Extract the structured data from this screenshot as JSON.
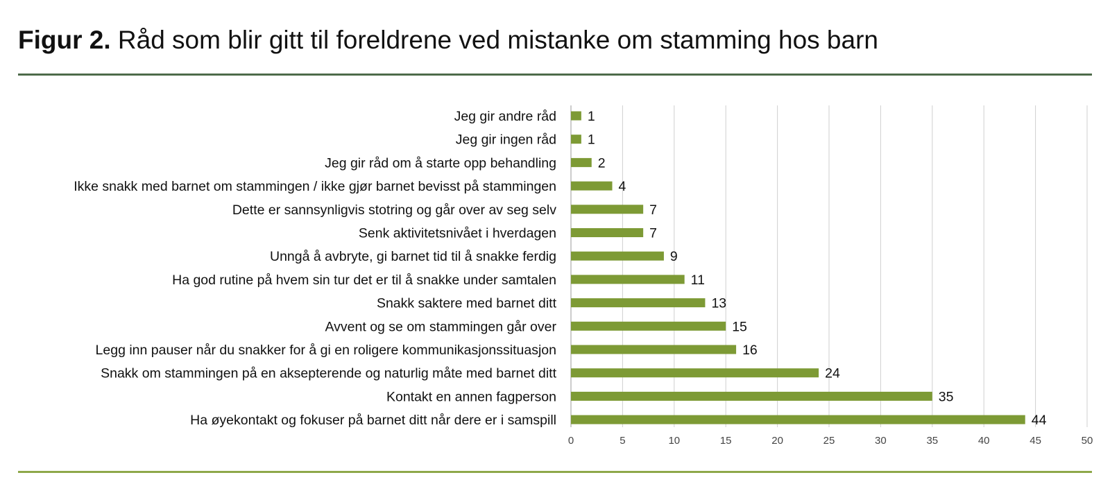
{
  "title": {
    "prefix": "Figur 2.",
    "text": "Råd som blir gitt til foreldrene ved mistanke om stamming hos barn"
  },
  "colors": {
    "bar": "#7d9a35",
    "top_rule": "#4e6b4a",
    "bottom_rule": "#8ea84a",
    "grid": "#cfcfcf"
  },
  "chart_data": {
    "type": "bar",
    "orientation": "horizontal",
    "categories": [
      "Jeg gir andre råd",
      "Jeg gir ingen råd",
      "Jeg gir råd om å starte opp behandling",
      "Ikke snakk med barnet om stammingen / ikke gjør barnet bevisst på stammingen",
      "Dette er sannsynligvis stotring og går over av seg selv",
      "Senk aktivitetsnivået i hverdagen",
      "Unngå å avbryte, gi barnet tid til å snakke ferdig",
      "Ha god rutine på hvem sin tur det er til å snakke under samtalen",
      "Snakk saktere med barnet ditt",
      "Avvent og se om stammingen går over",
      "Legg inn pauser når du snakker for å gi en roligere kommunikasjonssituasjon",
      "Snakk om stammingen på en aksepterende og naturlig måte med barnet ditt",
      "Kontakt en annen fagperson",
      "Ha øyekontakt og fokuser på barnet ditt når dere er i samspill"
    ],
    "values": [
      1,
      1,
      2,
      4,
      7,
      7,
      9,
      11,
      13,
      15,
      16,
      24,
      35,
      44
    ],
    "xlim": [
      0,
      50
    ],
    "xticks": [
      0,
      5,
      10,
      15,
      20,
      25,
      30,
      35,
      40,
      45,
      50
    ],
    "grid": true,
    "data_labels": true,
    "legend": "none"
  }
}
